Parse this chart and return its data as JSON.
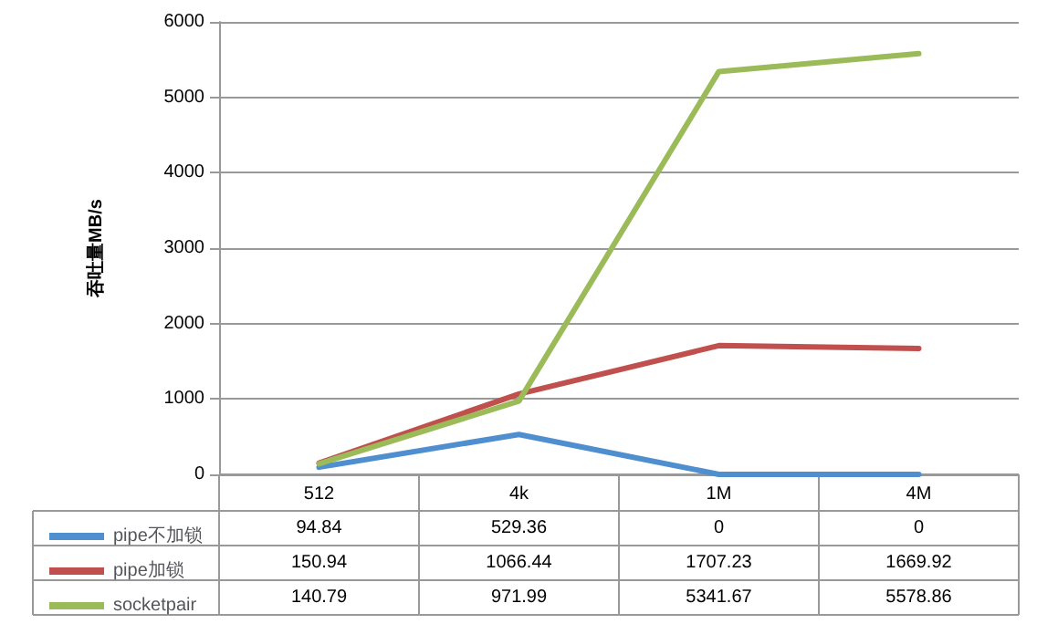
{
  "chart_data": {
    "type": "line",
    "ylabel": "吞吐量MB/s",
    "categories": [
      "512",
      "4k",
      "1M",
      "4M"
    ],
    "series": [
      {
        "name": "pipe不加锁",
        "color": "#4f8fcf",
        "values": [
          94.84,
          529.36,
          0,
          0
        ]
      },
      {
        "name": "pipe加锁",
        "color": "#c0504d",
        "values": [
          150.94,
          1066.44,
          1707.23,
          1669.92
        ]
      },
      {
        "name": "socketpair",
        "color": "#9bbb59",
        "values": [
          140.79,
          971.99,
          5341.67,
          5578.86
        ]
      }
    ],
    "ylim": [
      0,
      6000
    ],
    "yticks": [
      0,
      1000,
      2000,
      3000,
      4000,
      5000,
      6000
    ],
    "grid": "y",
    "legend": "bottom",
    "marker": "none",
    "line_style": "solid",
    "data_labels": true
  }
}
